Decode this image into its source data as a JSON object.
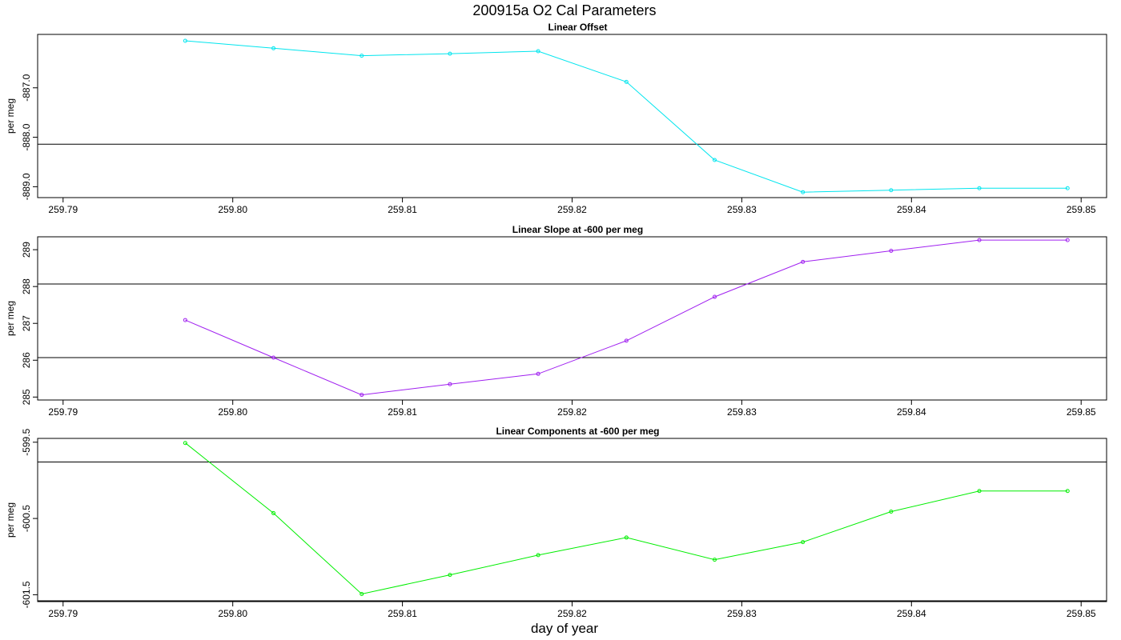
{
  "title": "200915a   O2 Cal Parameters",
  "xlabel": "day of year",
  "chart_data": [
    {
      "type": "line",
      "title": "Linear Offset",
      "ylabel": "per meg",
      "color": "#00e5ee",
      "xlim": [
        259.7885,
        259.8515
      ],
      "ylim": [
        -889.22,
        -885.92
      ],
      "xticks": [
        "259.79",
        "259.80",
        "259.81",
        "259.82",
        "259.83",
        "259.84",
        "259.85"
      ],
      "yticks": [
        "-889.0",
        "-888.0",
        "-887.0"
      ],
      "hlines": [
        -888.14
      ],
      "x": [
        259.7972,
        259.8024,
        259.8076,
        259.8128,
        259.818,
        259.8232,
        259.8284,
        259.8336,
        259.8388,
        259.844,
        259.8492
      ],
      "y": [
        -886.05,
        -886.2,
        -886.35,
        -886.31,
        -886.26,
        -886.88,
        -888.46,
        -889.11,
        -889.07,
        -889.03,
        -889.03
      ]
    },
    {
      "type": "line",
      "title": "Linear Slope at -600 per meg",
      "ylabel": "per meg",
      "color": "#a020f0",
      "xlim": [
        259.7885,
        259.8515
      ],
      "ylim": [
        284.92,
        289.35
      ],
      "xticks": [
        "259.79",
        "259.80",
        "259.81",
        "259.82",
        "259.83",
        "259.84",
        "259.85"
      ],
      "yticks": [
        "285",
        "286",
        "287",
        "288",
        "289"
      ],
      "hlines": [
        286.07,
        288.07
      ],
      "x": [
        259.7972,
        259.8024,
        259.8076,
        259.8128,
        259.818,
        259.8232,
        259.8284,
        259.8336,
        259.8388,
        259.844,
        259.8492
      ],
      "y": [
        287.09,
        286.07,
        285.06,
        285.35,
        285.63,
        286.53,
        287.72,
        288.67,
        288.97,
        289.26,
        289.26
      ]
    },
    {
      "type": "line",
      "title": "Linear Components at -600 per meg",
      "ylabel": "per meg",
      "color": "#00ee00",
      "xlim": [
        259.7885,
        259.8515
      ],
      "ylim": [
        -601.59,
        -599.45
      ],
      "xticks": [
        "259.79",
        "259.80",
        "259.81",
        "259.82",
        "259.83",
        "259.84",
        "259.85"
      ],
      "yticks": [
        "-601.5",
        "-600.5",
        "-599.5"
      ],
      "hlines": [
        -599.76,
        -601.58
      ],
      "x": [
        259.7972,
        259.8024,
        259.8076,
        259.8128,
        259.818,
        259.8232,
        259.8284,
        259.8336,
        259.8388,
        259.844,
        259.8492
      ],
      "y": [
        -599.51,
        -600.43,
        -601.49,
        -601.24,
        -600.98,
        -600.75,
        -601.04,
        -600.81,
        -600.41,
        -600.14,
        -600.14
      ]
    }
  ]
}
